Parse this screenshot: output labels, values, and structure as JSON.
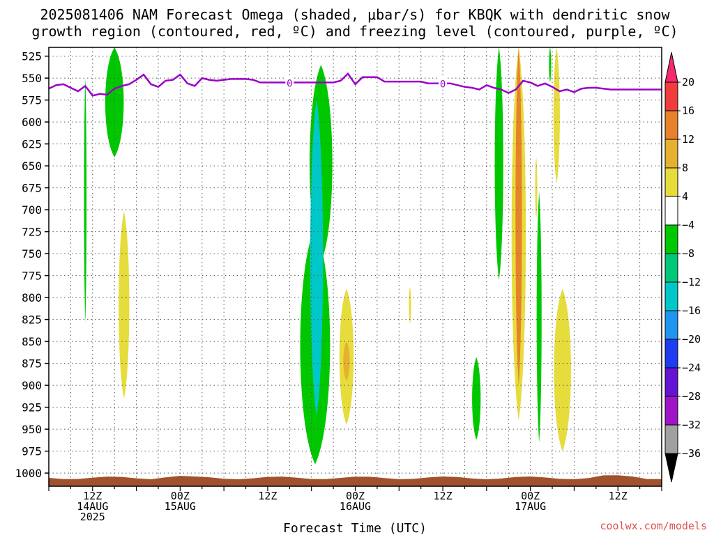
{
  "title_line1": "2025081406 NAM Forecast Omega (shaded, μbar/s) for KBQK with dendritic snow",
  "title_line2": "growth region (contoured, red, ºC) and freezing level (contoured, purple, ºC)",
  "watermark": "coolwx.com/models",
  "colors": {
    "freezing_level": "#9a00c8",
    "ground": "#a0522d",
    "grid": "#555555"
  },
  "chart_data": {
    "type": "heatmap",
    "title": "2025081406 NAM Forecast Omega (shaded, μbar/s) for KBQK with dendritic snow growth region (contoured, red, ºC) and freezing level (contoured, purple, ºC)",
    "xlabel": "Forecast Time (UTC)",
    "ylabel": "",
    "x_unit": "forecast hour from 2025-08-14 06Z",
    "xlim": [
      0,
      84
    ],
    "ylim": [
      1015,
      515
    ],
    "y_scale": "pressure (hPa), decreasing upward",
    "grid": true,
    "yticks": [
      525,
      550,
      575,
      600,
      625,
      650,
      675,
      700,
      725,
      750,
      775,
      800,
      825,
      850,
      875,
      900,
      925,
      950,
      975,
      1000
    ],
    "xticks": [
      {
        "x": 6,
        "lines": [
          "12Z",
          "14AUG",
          "2025"
        ]
      },
      {
        "x": 18,
        "lines": [
          "00Z",
          "15AUG"
        ]
      },
      {
        "x": 30,
        "lines": [
          "12Z"
        ]
      },
      {
        "x": 42,
        "lines": [
          "00Z",
          "16AUG"
        ]
      },
      {
        "x": 54,
        "lines": [
          "12Z"
        ]
      },
      {
        "x": 66,
        "lines": [
          "00Z",
          "17AUG"
        ]
      },
      {
        "x": 78,
        "lines": [
          "12Z"
        ]
      }
    ],
    "colorbar": {
      "labels": [
        "20",
        "16",
        "12",
        "8",
        "4",
        "−4",
        "−8",
        "−12",
        "−16",
        "−20",
        "−24",
        "−28",
        "−32",
        "−36"
      ],
      "colors": [
        "#f52a6e",
        "#f03c3c",
        "#e8822a",
        "#e6b030",
        "#e6dc3c",
        "#ffffff",
        "#00c800",
        "#00c878",
        "#00c8c8",
        "#1e96f0",
        "#1e3cf0",
        "#6414d2",
        "#a014c8",
        "#a0a0a0",
        "#000000"
      ]
    },
    "freezing_level": {
      "label": "0",
      "label_positions": [
        33,
        54
      ],
      "x": [
        0,
        1,
        2,
        3,
        4,
        5,
        6,
        7,
        8,
        9,
        10,
        11,
        12,
        13,
        14,
        15,
        16,
        17,
        18,
        19,
        20,
        21,
        22,
        23,
        24,
        25,
        26,
        27,
        28,
        29,
        30,
        31,
        32,
        33,
        34,
        35,
        36,
        37,
        38,
        39,
        40,
        41,
        42,
        43,
        44,
        45,
        46,
        47,
        48,
        49,
        50,
        51,
        52,
        53,
        54,
        55,
        56,
        57,
        58,
        59,
        60,
        61,
        62,
        63,
        64,
        65,
        66,
        67,
        68,
        69,
        70,
        71,
        72,
        73,
        74,
        75,
        76,
        77,
        78,
        79,
        80,
        81,
        82,
        83,
        84
      ],
      "pressure": [
        562,
        558,
        557,
        561,
        565,
        559,
        570,
        568,
        569,
        562,
        559,
        557,
        552,
        546,
        557,
        560,
        553,
        552,
        546,
        556,
        559,
        550,
        552,
        553,
        552,
        551,
        551,
        551,
        552,
        555,
        555,
        555,
        555,
        555,
        555,
        555,
        555,
        555,
        555,
        555,
        553,
        545,
        557,
        549,
        549,
        549,
        554,
        554,
        554,
        554,
        554,
        554,
        556,
        556,
        556,
        556,
        558,
        560,
        561,
        563,
        558,
        561,
        563,
        567,
        563,
        553,
        555,
        559,
        556,
        560,
        565,
        563,
        566,
        562,
        561,
        561,
        562,
        563,
        563,
        563,
        563,
        563,
        563,
        563,
        563
      ]
    },
    "omega_regions": [
      {
        "level": "-8",
        "x": 5.0,
        "width": 0.35,
        "p_top": 550,
        "p_bottom": 828
      },
      {
        "level": "-8",
        "x": 9.0,
        "width": 2.6,
        "p_top": 515,
        "p_bottom": 640
      },
      {
        "level": "4",
        "x": 10.3,
        "width": 1.5,
        "p_top": 702,
        "p_bottom": 915
      },
      {
        "level": "-8",
        "x": 37.3,
        "width": 3.2,
        "p_top": 535,
        "p_bottom": 760
      },
      {
        "level": "-8",
        "x": 36.5,
        "width": 4.2,
        "p_top": 720,
        "p_bottom": 990
      },
      {
        "level": "-12",
        "x": 36.7,
        "width": 1.8,
        "p_top": 575,
        "p_bottom": 935
      },
      {
        "level": "4",
        "x": 40.8,
        "width": 2.0,
        "p_top": 790,
        "p_bottom": 945
      },
      {
        "level": "8",
        "x": 40.8,
        "width": 0.9,
        "p_top": 850,
        "p_bottom": 895
      },
      {
        "level": "4",
        "x": 49.5,
        "width": 0.3,
        "p_top": 788,
        "p_bottom": 830
      },
      {
        "level": "-8",
        "x": 58.6,
        "width": 1.2,
        "p_top": 868,
        "p_bottom": 962
      },
      {
        "level": "-8",
        "x": 61.7,
        "width": 1.2,
        "p_top": 515,
        "p_bottom": 780
      },
      {
        "level": "4",
        "x": 64.4,
        "width": 2.0,
        "p_top": 515,
        "p_bottom": 940
      },
      {
        "level": "12",
        "x": 64.4,
        "width": 0.9,
        "p_top": 515,
        "p_bottom": 900
      },
      {
        "level": "-8",
        "x": 67.2,
        "width": 0.7,
        "p_top": 680,
        "p_bottom": 965
      },
      {
        "level": "4",
        "x": 66.8,
        "width": 0.3,
        "p_top": 640,
        "p_bottom": 710
      },
      {
        "level": "-8",
        "x": 68.7,
        "width": 0.3,
        "p_top": 515,
        "p_bottom": 555
      },
      {
        "level": "4",
        "x": 69.6,
        "width": 0.9,
        "p_top": 515,
        "p_bottom": 670
      },
      {
        "level": "4",
        "x": 70.4,
        "width": 2.4,
        "p_top": 790,
        "p_bottom": 975
      }
    ]
  }
}
